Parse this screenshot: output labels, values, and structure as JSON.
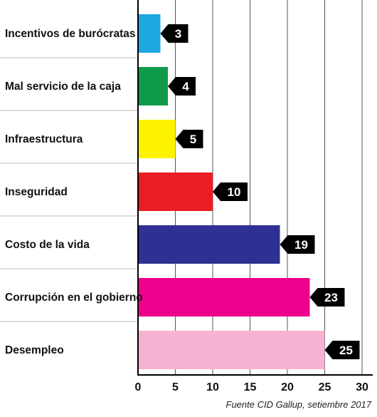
{
  "chart_data": {
    "type": "bar",
    "orientation": "horizontal",
    "categories": [
      "Incentivos de burócratas",
      "Mal servicio de la caja",
      "Infraestructura",
      "Inseguridad",
      "Costo de la vida",
      "Corrupción en el gobierno",
      "Desempleo"
    ],
    "values": [
      3,
      4,
      5,
      10,
      19,
      23,
      25
    ],
    "colors": [
      "#1ea7e1",
      "#0f9b4a",
      "#fdf200",
      "#ec1c24",
      "#2e3192",
      "#ec008c",
      "#f5b3d1"
    ],
    "x_ticks": [
      0,
      5,
      10,
      15,
      20,
      25,
      30
    ],
    "xlim": [
      0,
      30
    ],
    "grid": "vertical",
    "title": "",
    "xlabel": "",
    "ylabel": ""
  },
  "source": "Fuente CID Gallup, setiembre 2017"
}
